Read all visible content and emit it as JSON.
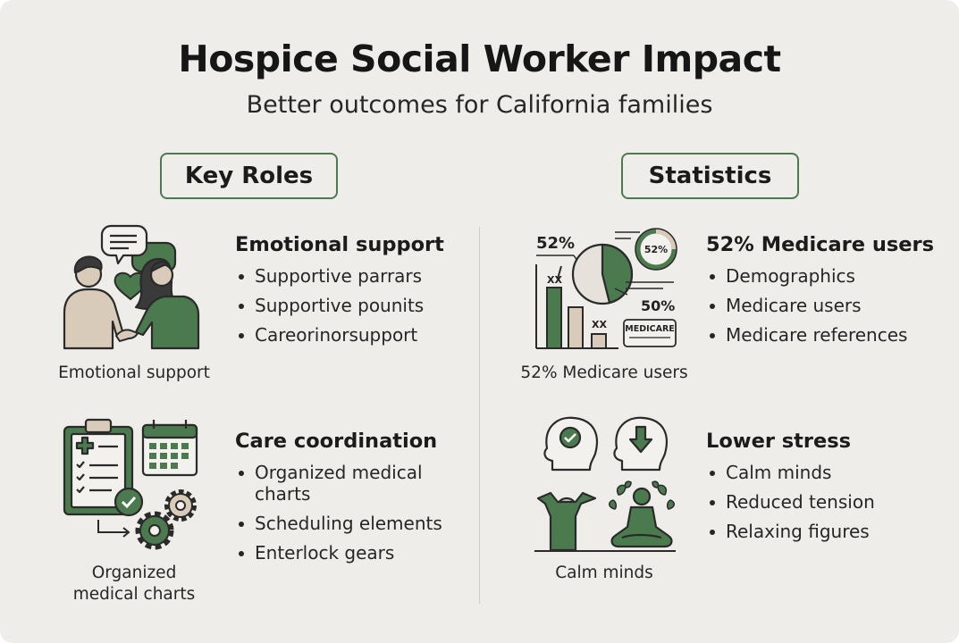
{
  "header": {
    "title": "Hospice Social Worker Impact",
    "subtitle": "Better outcomes for California families"
  },
  "sections": {
    "left_label": "Key Roles",
    "right_label": "Statistics"
  },
  "emotional_support": {
    "heading": "Emotional support",
    "items": [
      "Supportive parrars",
      "Supportive pounits",
      "Careorinorsupport"
    ],
    "caption": "Emotional support"
  },
  "care_coordination": {
    "heading": "Care coordination",
    "items": [
      "Organized medical charts",
      "Scheduling elements",
      "Enterlock gears"
    ],
    "caption_line1": "Organized",
    "caption_line2": "medical charts"
  },
  "medicare": {
    "heading": "52% Medicare users",
    "items": [
      "Demographics",
      "Medicare users",
      "Medicare references"
    ],
    "caption": "52% Medicare users",
    "chart": {
      "label_big": "52%",
      "label_ring": "52%",
      "label_low": "50%",
      "bar_label_1": "XX",
      "bar_label_2": "XX",
      "card_label": "MEDICARE"
    }
  },
  "stress": {
    "heading": "Lower stress",
    "items": [
      "Calm minds",
      "Reduced tension",
      "Relaxing figures"
    ],
    "caption": "Calm minds"
  },
  "colors": {
    "accent_green": "#4a7a4e",
    "background": "#efedea",
    "skin": "#d9cbb9",
    "text": "#1b1b1b"
  }
}
